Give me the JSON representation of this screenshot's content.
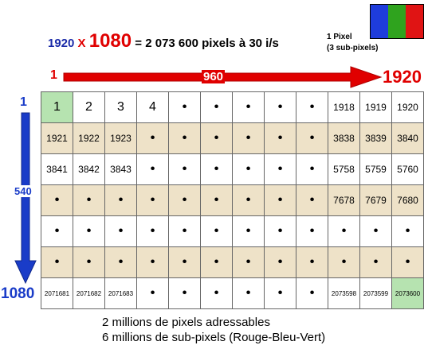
{
  "header": {
    "width": "1920",
    "x_sign": "X",
    "height": "1080",
    "rest": "= 2 073 600 pixels à 30 i/s"
  },
  "pixel_sample": {
    "colors": [
      "#1e3cdc",
      "#2fa31e",
      "#e01414"
    ],
    "label_line1": "1 Pixel",
    "label_line2": "(3 sub-pixels)"
  },
  "h_axis": {
    "start": "1",
    "mid": "960",
    "end": "1920",
    "color": "#e00000"
  },
  "v_axis": {
    "start": "1",
    "mid": "540",
    "end": "1080",
    "color": "#1a3cc8"
  },
  "grid": {
    "rows": [
      [
        "1",
        "2",
        "3",
        "4",
        "•",
        "•",
        "•",
        "•",
        "•",
        "1918",
        "1919",
        "1920"
      ],
      [
        "1921",
        "1922",
        "1923",
        "•",
        "•",
        "•",
        "•",
        "•",
        "•",
        "3838",
        "3839",
        "3840"
      ],
      [
        "3841",
        "3842",
        "3843",
        "•",
        "•",
        "•",
        "•",
        "•",
        "•",
        "5758",
        "5759",
        "5760"
      ],
      [
        "•",
        "•",
        "•",
        "•",
        "•",
        "•",
        "•",
        "•",
        "•",
        "7678",
        "7679",
        "7680"
      ],
      [
        "•",
        "•",
        "•",
        "•",
        "•",
        "•",
        "•",
        "•",
        "•",
        "•",
        "•",
        "•"
      ],
      [
        "•",
        "•",
        "•",
        "•",
        "•",
        "•",
        "•",
        "•",
        "•",
        "•",
        "•",
        "•"
      ],
      [
        "2071681",
        "2071682",
        "2071683",
        "•",
        "•",
        "•",
        "•",
        "•",
        "•",
        "2073598",
        "2073599",
        "2073600"
      ]
    ]
  },
  "footer": {
    "line1": "2 millions de pixels adressables",
    "line2": "6 millions de sub-pixels (Rouge-Bleu-Vert)"
  }
}
